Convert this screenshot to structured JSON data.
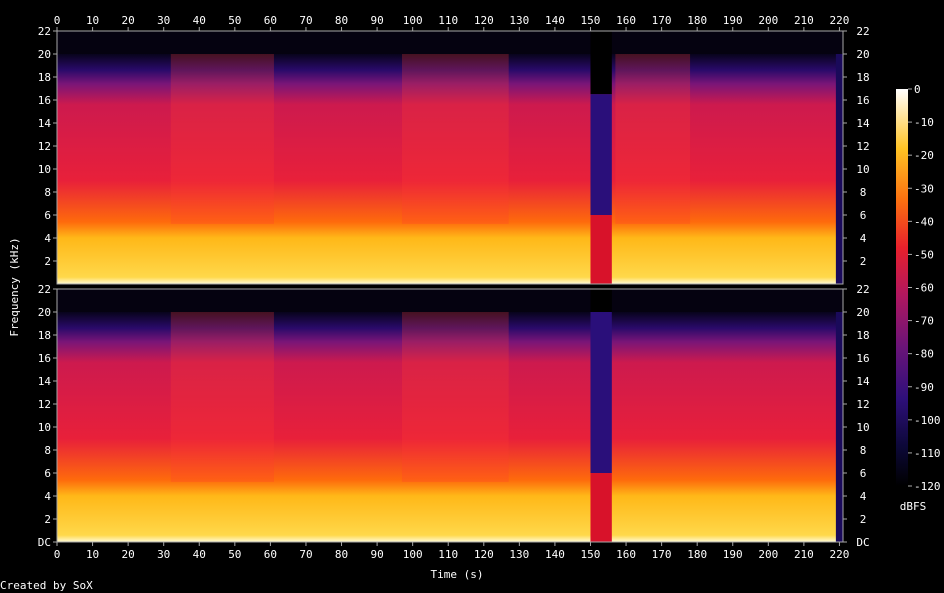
{
  "chart_data": {
    "type": "heatmap",
    "xlabel": "Time (s)",
    "ylabel": "Frequency (kHz)",
    "credit": "Created by SoX",
    "x_ticks": [
      0,
      10,
      20,
      30,
      40,
      50,
      60,
      70,
      80,
      90,
      100,
      110,
      120,
      130,
      140,
      150,
      160,
      170,
      180,
      190,
      200,
      210,
      220
    ],
    "xlim": [
      0,
      221
    ],
    "ylim_khz": [
      0,
      22
    ],
    "channels": [
      {
        "y_ticks": [
          "22",
          "20",
          "18",
          "16",
          "14",
          "12",
          "10",
          "8",
          "6",
          "4",
          "2"
        ],
        "cutoff_khz": 20,
        "gap_segments": [
          {
            "t0": 150,
            "t1": 156,
            "cutoff_khz": 16.5
          }
        ],
        "loud_segments": [
          [
            32,
            61
          ],
          [
            97,
            127
          ],
          [
            157,
            178
          ]
        ]
      },
      {
        "y_ticks": [
          "22",
          "20",
          "18",
          "16",
          "14",
          "12",
          "10",
          "8",
          "6",
          "4",
          "2",
          "DC"
        ],
        "cutoff_khz": 20,
        "gap_segments": [
          {
            "t0": 150,
            "t1": 156,
            "cutoff_khz": 20
          }
        ],
        "loud_segments": [
          [
            32,
            61
          ],
          [
            97,
            127
          ]
        ]
      }
    ],
    "colorbar": {
      "label": "dBFS",
      "ticks": [
        "0",
        "-10",
        "-20",
        "-30",
        "-40",
        "-50",
        "-60",
        "-70",
        "-80",
        "-90",
        "-100",
        "-110",
        "-120"
      ],
      "range_db": [
        -120,
        0
      ]
    },
    "colors": {
      "background": "#000000",
      "frame": "#a8a8a8",
      "text": "#ffffff"
    }
  }
}
